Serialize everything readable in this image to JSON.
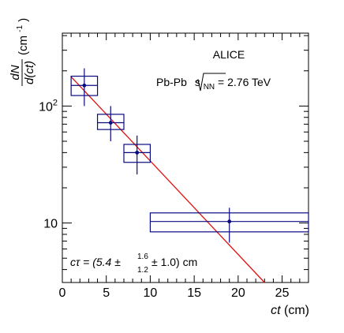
{
  "chart_data": {
    "type": "scatter",
    "x_scale": "linear",
    "y_scale": "log",
    "xlim": [
      0,
      28
    ],
    "ylim": [
      3.1,
      420
    ],
    "x_ticks": [
      0,
      5,
      10,
      15,
      20,
      25
    ],
    "y_tick_labels": [
      {
        "value": 10,
        "base": "10",
        "exp": ""
      },
      {
        "value": 100,
        "base": "10",
        "exp": "2"
      }
    ],
    "xlabel": {
      "var": "ct",
      "unit": " (cm)"
    },
    "ylabel": {
      "numerator": "dN",
      "denominator": "d(ct)",
      "unit_open": "(cm",
      "unit_exp": "-1",
      "unit_close": ")"
    },
    "grid": false,
    "annotations": {
      "experiment": "ALICE",
      "system": "Pb-Pb",
      "energy_symbol": "s",
      "energy_sub": "NN",
      "energy_value": " = 2.76 TeV",
      "result_prefix": "cτ = (5.4 ",
      "result_err_up": "1.6",
      "result_err_down": "1.2",
      "result_suffix": " ± 1.0) cm"
    },
    "series": [
      {
        "points": [
          {
            "x": 2.5,
            "y": 150,
            "xlow": 1.0,
            "xhigh": 4.0,
            "ylow": 100,
            "yhigh": 210,
            "sys_low": 123,
            "sys_high": 180
          },
          {
            "x": 5.5,
            "y": 72,
            "xlow": 4.0,
            "xhigh": 7.0,
            "ylow": 50,
            "yhigh": 100,
            "sys_low": 63,
            "sys_high": 85
          },
          {
            "x": 8.5,
            "y": 40,
            "xlow": 7.0,
            "xhigh": 10.0,
            "ylow": 26,
            "yhigh": 56,
            "sys_low": 33,
            "sys_high": 47
          },
          {
            "x": 19.0,
            "y": 10.3,
            "xlow": 10.0,
            "xhigh": 28.0,
            "ylow": 6.8,
            "yhigh": 13.5,
            "sys_low": 8.4,
            "sys_high": 12.2
          }
        ]
      }
    ],
    "fit": {
      "x_start": 1.0,
      "y_start": 178,
      "x_end": 23.0,
      "y_end": 3.1
    },
    "colors": {
      "data": "#0a0a80",
      "fit": "#e01010",
      "axis": "#000000"
    }
  }
}
